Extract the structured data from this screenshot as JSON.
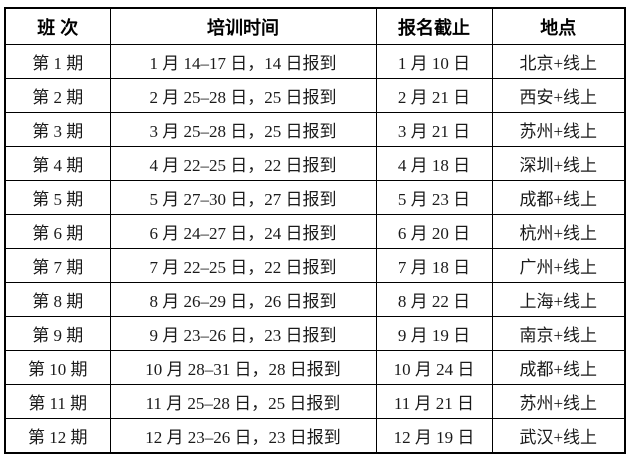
{
  "colors": {
    "background": "#ffffff",
    "border": "#000000",
    "header_text": "#000000",
    "body_text": "#1a1a1a"
  },
  "table": {
    "headers": [
      "班 次",
      "培训时间",
      "报名截止",
      "地点"
    ],
    "rows": [
      {
        "session": "第 1 期",
        "time": "1 月 14–17 日，14 日报到",
        "deadline": "1 月 10 日",
        "location": "北京+线上"
      },
      {
        "session": "第 2 期",
        "time": "2 月 25–28 日，25 日报到",
        "deadline": "2 月 21 日",
        "location": "西安+线上"
      },
      {
        "session": "第 3 期",
        "time": "3 月 25–28 日，25 日报到",
        "deadline": "3 月 21 日",
        "location": "苏州+线上"
      },
      {
        "session": "第 4 期",
        "time": "4 月 22–25 日，22 日报到",
        "deadline": "4 月 18 日",
        "location": "深圳+线上"
      },
      {
        "session": "第 5 期",
        "time": "5 月 27–30 日，27 日报到",
        "deadline": "5 月 23 日",
        "location": "成都+线上"
      },
      {
        "session": "第 6 期",
        "time": "6 月 24–27 日，24 日报到",
        "deadline": "6 月 20 日",
        "location": "杭州+线上"
      },
      {
        "session": "第 7 期",
        "time": "7 月 22–25 日，22 日报到",
        "deadline": "7 月 18 日",
        "location": "广州+线上"
      },
      {
        "session": "第 8 期",
        "time": "8 月 26–29 日，26 日报到",
        "deadline": "8 月 22 日",
        "location": "上海+线上"
      },
      {
        "session": "第 9 期",
        "time": "9 月 23–26 日，23 日报到",
        "deadline": "9 月 19 日",
        "location": "南京+线上"
      },
      {
        "session": "第 10 期",
        "time": "10 月 28–31 日，28 日报到",
        "deadline": "10 月 24 日",
        "location": "成都+线上"
      },
      {
        "session": "第 11 期",
        "time": "11 月 25–28 日，25 日报到",
        "deadline": "11 月 21 日",
        "location": "苏州+线上"
      },
      {
        "session": "第 12 期",
        "time": "12 月 23–26 日，23 日报到",
        "deadline": "12 月 19 日",
        "location": "武汉+线上"
      }
    ]
  }
}
